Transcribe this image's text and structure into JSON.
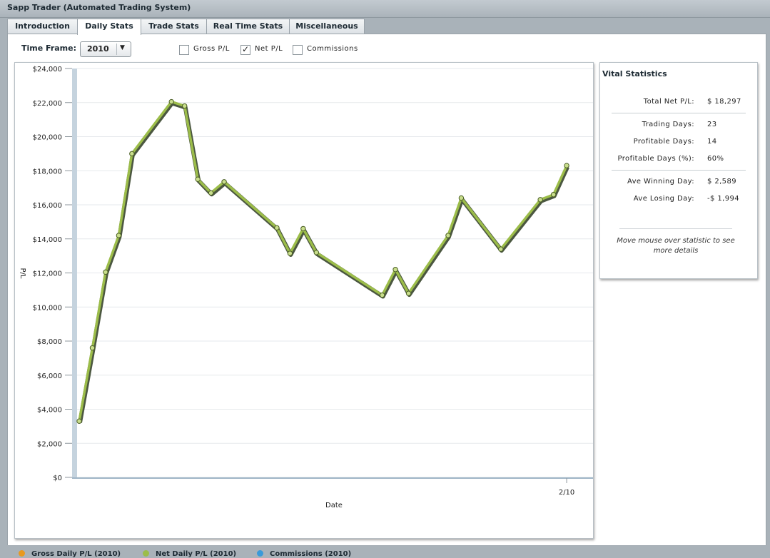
{
  "window": {
    "title": "Sapp Trader (Automated Trading System)"
  },
  "tabs": [
    {
      "label": "Introduction"
    },
    {
      "label": "Daily Stats"
    },
    {
      "label": "Trade Stats"
    },
    {
      "label": "Real Time Stats"
    },
    {
      "label": "Miscellaneous"
    }
  ],
  "active_tab": "Daily Stats",
  "controls": {
    "timeframe_label": "Time Frame:",
    "timeframe_value": "2010",
    "checkboxes": [
      {
        "label": "Gross P/L",
        "checked": false
      },
      {
        "label": "Net P/L",
        "checked": true
      },
      {
        "label": "Commissions",
        "checked": false
      }
    ]
  },
  "chart_data": {
    "type": "line",
    "title": "",
    "xlabel": "Date",
    "ylabel": "P/L",
    "ylim": [
      0,
      24000
    ],
    "yticks": [
      {
        "value": 0,
        "label": "$0"
      },
      {
        "value": 2000,
        "label": "$2,000"
      },
      {
        "value": 4000,
        "label": "$4,000"
      },
      {
        "value": 6000,
        "label": "$6,000"
      },
      {
        "value": 8000,
        "label": "$8,000"
      },
      {
        "value": 10000,
        "label": "$10,000"
      },
      {
        "value": 12000,
        "label": "$12,000"
      },
      {
        "value": 14000,
        "label": "$14,000"
      },
      {
        "value": 16000,
        "label": "$16,000"
      },
      {
        "value": 18000,
        "label": "$18,000"
      },
      {
        "value": 20000,
        "label": "$20,000"
      },
      {
        "value": 22000,
        "label": "$22,000"
      },
      {
        "value": 24000,
        "label": "$24,000"
      }
    ],
    "xlim": [
      "2010-01-04",
      "2010-02-12"
    ],
    "xticks": [
      {
        "value": "2010-02-10",
        "label": "2/10"
      }
    ],
    "grid": true,
    "series": [
      {
        "name": "Net Daily P/L (2010)",
        "color": "#9cbd4a",
        "points": [
          [
            "2010-01-04",
            3300
          ],
          [
            "2010-01-05",
            7600
          ],
          [
            "2010-01-06",
            12050
          ],
          [
            "2010-01-07",
            14200
          ],
          [
            "2010-01-08",
            19000
          ],
          [
            "2010-01-11",
            22050
          ],
          [
            "2010-01-12",
            21800
          ],
          [
            "2010-01-13",
            17500
          ],
          [
            "2010-01-14",
            16700
          ],
          [
            "2010-01-15",
            17350
          ],
          [
            "2010-01-19",
            14650
          ],
          [
            "2010-01-20",
            13150
          ],
          [
            "2010-01-21",
            14600
          ],
          [
            "2010-01-22",
            13200
          ],
          [
            "2010-01-27",
            10700
          ],
          [
            "2010-01-28",
            12200
          ],
          [
            "2010-01-29",
            10800
          ],
          [
            "2010-02-01",
            14200
          ],
          [
            "2010-02-02",
            16400
          ],
          [
            "2010-02-05",
            13400
          ],
          [
            "2010-02-08",
            16300
          ],
          [
            "2010-02-09",
            16600
          ],
          [
            "2010-02-10",
            18300
          ]
        ]
      }
    ],
    "legend": [
      {
        "label": "Gross Daily P/L (2010)",
        "color": "#e8991f"
      },
      {
        "label": "Net Daily P/L (2010)",
        "color": "#9cbd4a"
      },
      {
        "label": "Commissions (2010)",
        "color": "#3a9ad9"
      }
    ],
    "legend_position": "bottom-left"
  },
  "vitals": {
    "title": "Vital Statistics",
    "rows": [
      {
        "label": "Total Net P/L:",
        "value": "$ 18,297"
      },
      {
        "label": "Trading Days:",
        "value": "23"
      },
      {
        "label": "Profitable Days:",
        "value": "14"
      },
      {
        "label": "Profitable Days (%):",
        "value": "60%"
      },
      {
        "label": "Ave Winning Day:",
        "value": "$ 2,589"
      },
      {
        "label": "Ave Losing Day:",
        "value": "-$ 1,994"
      }
    ],
    "help": "Move mouse over statistic to see more details"
  }
}
